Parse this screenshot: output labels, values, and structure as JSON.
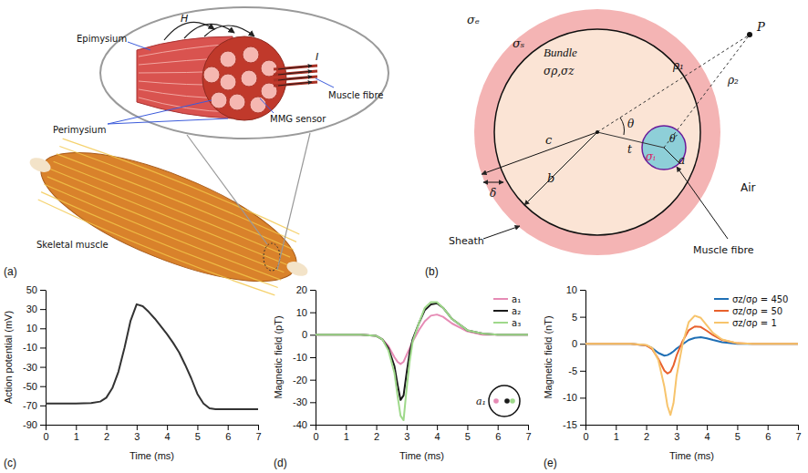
{
  "chart_data": [
    {
      "type": "line",
      "label": "(c)",
      "x_label": "Time (ms)",
      "y_label": "Action potential (mV)",
      "x": [
        0,
        0.5,
        1,
        1.5,
        1.8,
        2.0,
        2.2,
        2.4,
        2.6,
        2.8,
        3.0,
        3.2,
        3.4,
        3.6,
        3.8,
        4.0,
        4.2,
        4.4,
        4.6,
        4.8,
        5.0,
        5.2,
        5.4,
        5.6,
        6,
        6.5,
        7
      ],
      "values": [
        -68,
        -68,
        -68,
        -67.5,
        -66,
        -62,
        -52,
        -35,
        -10,
        18,
        35,
        33,
        27,
        20,
        12,
        4,
        -5,
        -15,
        -28,
        -42,
        -58,
        -68,
        -73,
        -74,
        -74,
        -74,
        -74
      ],
      "color": "#333333",
      "xlim": [
        0,
        7
      ],
      "ylim": [
        -90,
        50
      ],
      "xticks": [
        0,
        1,
        2,
        3,
        4,
        5,
        6,
        7
      ],
      "yticks": [
        -90,
        -70,
        -50,
        -30,
        -10,
        10,
        30,
        50
      ]
    },
    {
      "type": "line",
      "label": "(d)",
      "x_label": "Time (ms)",
      "y_label": "Magnetic field (pT)",
      "x": [
        0,
        1,
        1.5,
        2,
        2.2,
        2.4,
        2.6,
        2.7,
        2.8,
        2.9,
        3.0,
        3.1,
        3.2,
        3.4,
        3.6,
        3.8,
        4.0,
        4.2,
        4.5,
        5,
        5.5,
        6,
        7
      ],
      "series": [
        {
          "name": "a₁",
          "color": "#e68bb5",
          "values": [
            0,
            0,
            0,
            -0.5,
            -2,
            -5,
            -10,
            -12,
            -13,
            -12,
            -9,
            -6,
            -3,
            2,
            6,
            8.5,
            9,
            8,
            5,
            1.5,
            0,
            0,
            0
          ]
        },
        {
          "name": "a₂",
          "color": "#1a1a1a",
          "values": [
            0,
            0,
            0,
            -0.5,
            -2,
            -6,
            -14,
            -22,
            -29,
            -27,
            -17,
            -8,
            -2,
            5,
            11,
            13.5,
            14,
            12,
            7,
            2,
            0.5,
            0,
            0
          ]
        },
        {
          "name": "a₃",
          "color": "#9fd98b",
          "values": [
            0,
            0,
            0,
            -0.5,
            -2,
            -7,
            -17,
            -27,
            -36,
            -38,
            -24,
            -12,
            -3,
            5,
            12,
            14.5,
            14.5,
            12,
            7,
            2,
            0.5,
            0,
            0
          ]
        }
      ],
      "annotation": "a₁",
      "legend": "upper right",
      "xlim": [
        0,
        7
      ],
      "ylim": [
        -40,
        20
      ],
      "xticks": [
        0,
        1,
        2,
        3,
        4,
        5,
        6,
        7
      ],
      "yticks": [
        -40,
        -30,
        -20,
        -10,
        0,
        10,
        20
      ]
    },
    {
      "type": "line",
      "label": "(e)",
      "x_label": "Time (ms)",
      "y_label": "Magnetic field (nT)",
      "x": [
        0,
        1,
        1.5,
        2,
        2.2,
        2.4,
        2.6,
        2.7,
        2.8,
        2.9,
        3.0,
        3.2,
        3.4,
        3.6,
        3.8,
        4.0,
        4.2,
        4.5,
        5,
        5.5,
        6,
        7
      ],
      "series": [
        {
          "name": "σz/σρ = 450",
          "color": "#1f6fb5",
          "values": [
            0,
            0,
            0,
            -0.3,
            -0.8,
            -1.7,
            -2.2,
            -2.1,
            -1.8,
            -1.4,
            -0.9,
            -0.1,
            0.7,
            1.1,
            1.2,
            1.0,
            0.7,
            0.3,
            0,
            0,
            0,
            0
          ]
        },
        {
          "name": "σz/σρ = 50",
          "color": "#e8602c",
          "values": [
            0,
            0,
            0,
            -0.3,
            -1,
            -2.8,
            -5,
            -5.5,
            -5.2,
            -4,
            -2.2,
            0.5,
            2.5,
            3.2,
            3.1,
            2.4,
            1.6,
            0.7,
            0.1,
            0,
            0,
            0
          ]
        },
        {
          "name": "σz/σρ = 1",
          "color": "#f7c46c",
          "values": [
            0,
            0,
            0,
            -0.2,
            -0.8,
            -3,
            -8,
            -11.5,
            -13.2,
            -11,
            -6,
            0,
            4,
            5.2,
            4.8,
            3.4,
            2,
            0.8,
            0.1,
            0,
            0,
            0
          ]
        }
      ],
      "legend": "upper right",
      "xlim": [
        0,
        7
      ],
      "ylim": [
        -15,
        10
      ],
      "xticks": [
        0,
        1,
        2,
        3,
        4,
        5,
        6,
        7
      ],
      "yticks": [
        -15,
        -10,
        -5,
        0,
        5,
        10
      ]
    }
  ],
  "diagrams": {
    "a": {
      "labels": {
        "epimysium": "Epimysium",
        "h": "H",
        "i": "I",
        "perimysium": "Perimysium",
        "mmg_sensor": "MMG sensor",
        "muscle_fibre": "Muscle fibre",
        "skeletal_muscle": "Skeletal muscle",
        "panel": "(a)"
      }
    },
    "b": {
      "labels": {
        "sigma_e": "σₑ",
        "sigma_s": "σₛ",
        "bundle": "Bundle",
        "sigma_bundle": "σρ,σz",
        "delta": "δ",
        "c": "c",
        "b": "b",
        "theta": "θ",
        "t": "t",
        "theta_prime": "θ′",
        "a": "a",
        "sigma_i": "σᵢ",
        "rho1": "ρ₁",
        "rho2": "ρ₂",
        "p": "P",
        "air": "Air",
        "sheath": "Sheath",
        "muscle_fibre": "Muscle fibre",
        "panel": "(b)"
      }
    }
  }
}
